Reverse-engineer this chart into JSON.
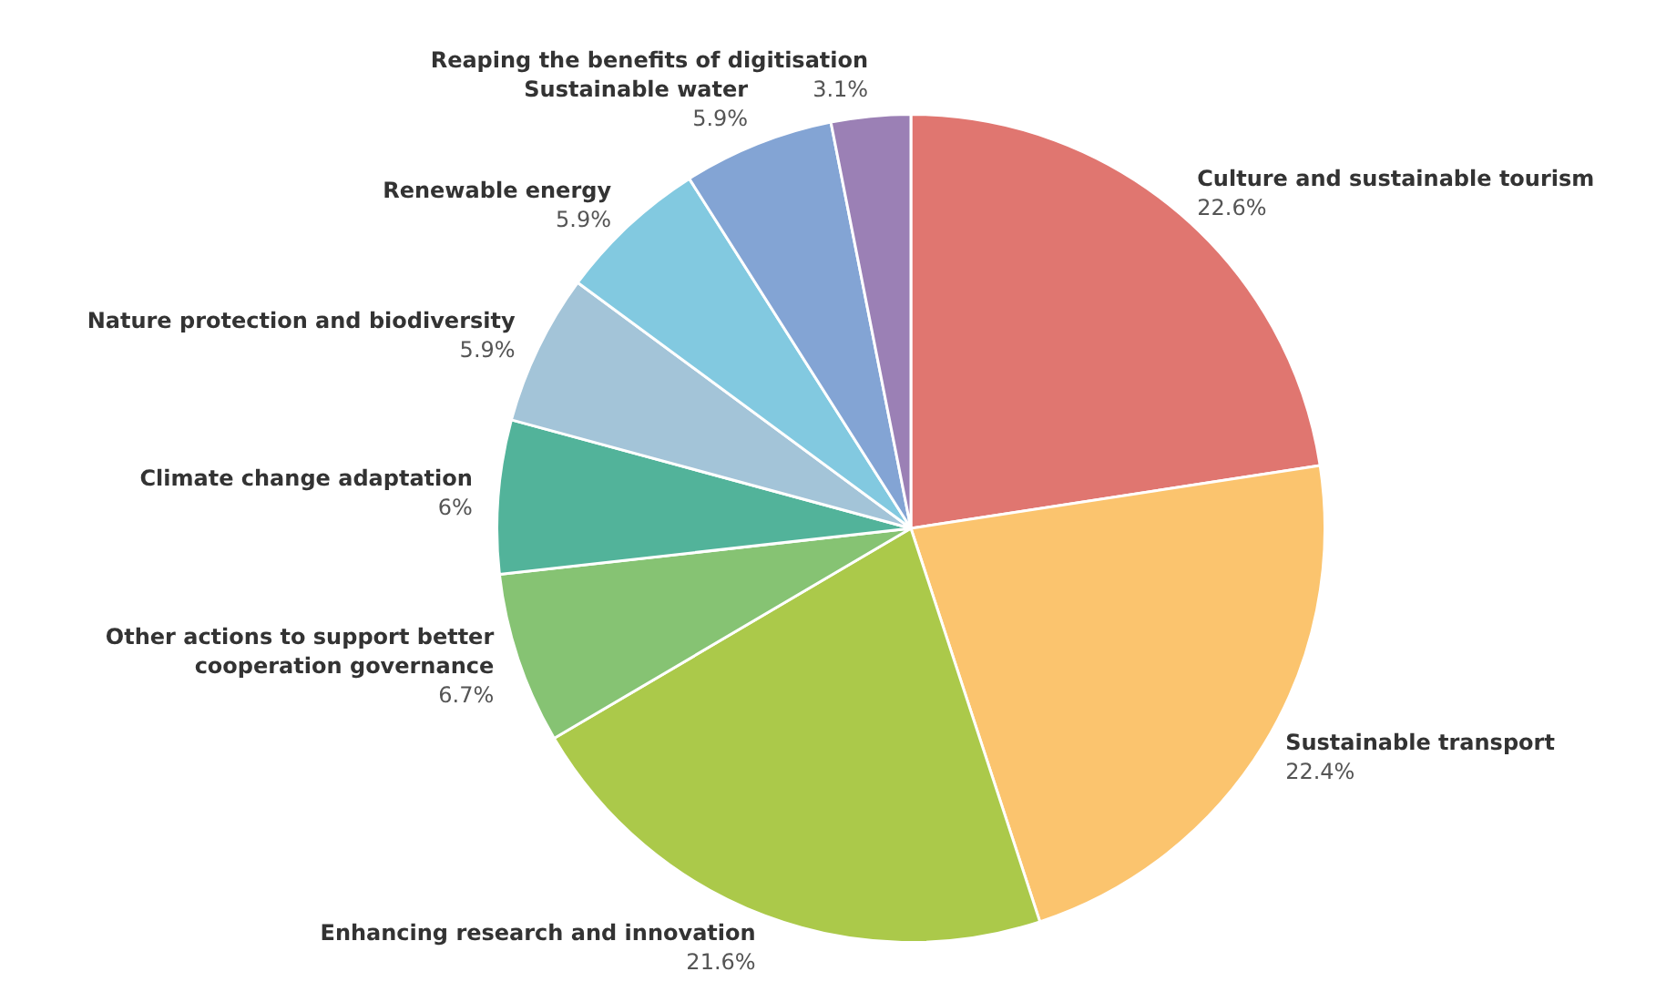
{
  "chart_data": {
    "type": "pie",
    "categories": [
      "Culture and sustainable tourism",
      "Sustainable transport",
      "Enhancing research and innovation",
      "Other actions to support better cooperation governance",
      "Climate change adaptation",
      "Nature protection and biodiversity",
      "Renewable energy",
      "Sustainable water",
      "Reaping the benefits of digitisation"
    ],
    "values": [
      22.6,
      22.4,
      21.6,
      6.7,
      6,
      5.9,
      5.9,
      5.9,
      3.1
    ],
    "colors": [
      "#e07670",
      "#fbc46e",
      "#abc94a",
      "#86c373",
      "#52b39a",
      "#a3c4d8",
      "#82c9e0",
      "#83a4d4",
      "#9b80b5"
    ],
    "value_labels": [
      "22.6%",
      "22.4%",
      "21.6%",
      "6.7%",
      "6%",
      "5.9%",
      "5.9%",
      "5.9%",
      "3.1%"
    ],
    "legend": false
  }
}
